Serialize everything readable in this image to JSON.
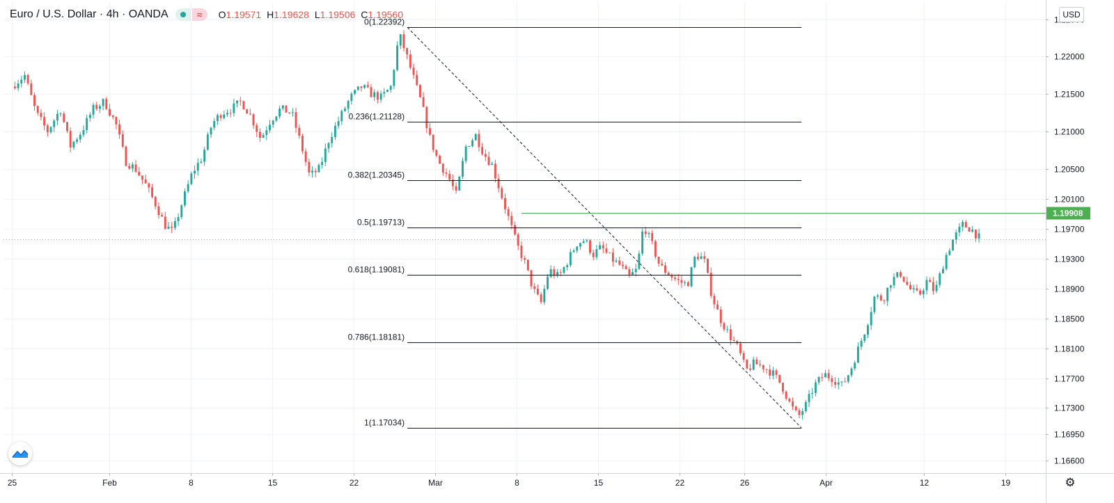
{
  "header": {
    "title": "Euro / U.S. Dollar · 4h · OANDA",
    "ohlc": [
      {
        "k": "O",
        "v": "1.19571"
      },
      {
        "k": "H",
        "v": "1.19628"
      },
      {
        "k": "L",
        "v": "1.19506"
      },
      {
        "k": "C",
        "v": "1.19560"
      }
    ]
  },
  "currency_button": "USD",
  "axis_top_partial_label": "0",
  "colors": {
    "up": "#26a69a",
    "down": "#ef5350",
    "resistance": "#4caf50",
    "fib": "#131722",
    "grid": "#f0f3fa"
  },
  "chart_data": {
    "type": "candlestick",
    "symbol": "Euro / U.S. Dollar",
    "timeframe": "4h",
    "ylim": [
      1.1643,
      1.2272
    ],
    "y_ticks": [
      "1.22500",
      "1.22000",
      "1.21500",
      "1.21000",
      "1.20500",
      "1.20100",
      "1.19700",
      "1.19300",
      "1.18900",
      "1.18500",
      "1.18100",
      "1.17700",
      "1.17300",
      "1.16950",
      "1.16600"
    ],
    "y_tick_values": [
      1.225,
      1.22,
      1.215,
      1.21,
      1.205,
      1.201,
      1.197,
      1.193,
      1.189,
      1.185,
      1.181,
      1.177,
      1.173,
      1.1695,
      1.166
    ],
    "x_ticks": [
      {
        "label": "25",
        "pos": 0
      },
      {
        "label": "Feb",
        "pos": 6
      },
      {
        "label": "8",
        "pos": 11
      },
      {
        "label": "15",
        "pos": 16
      },
      {
        "label": "22",
        "pos": 21
      },
      {
        "label": "Mar",
        "pos": 26
      },
      {
        "label": "8",
        "pos": 31
      },
      {
        "label": "15",
        "pos": 36
      },
      {
        "label": "22",
        "pos": 41
      },
      {
        "label": "26",
        "pos": 45
      },
      {
        "label": "Apr",
        "pos": 50
      },
      {
        "label": "12",
        "pos": 56
      },
      {
        "label": "19",
        "pos": 61
      }
    ],
    "x_range": [
      -0.5,
      63.5
    ],
    "path": [
      [
        0,
        1.216
      ],
      [
        0.8,
        1.2175
      ],
      [
        1.5,
        1.2125
      ],
      [
        2.2,
        1.21
      ],
      [
        3,
        1.213
      ],
      [
        3.6,
        1.208
      ],
      [
        4.3,
        1.21
      ],
      [
        5,
        1.213
      ],
      [
        5.7,
        1.214
      ],
      [
        6.4,
        1.211
      ],
      [
        7,
        1.206
      ],
      [
        7.6,
        1.205
      ],
      [
        8.2,
        1.203
      ],
      [
        8.9,
        1.2
      ],
      [
        9.4,
        1.1975
      ],
      [
        9.9,
        1.1965
      ],
      [
        10.4,
        1.2
      ],
      [
        11.1,
        1.2045
      ],
      [
        11.7,
        1.2065
      ],
      [
        12.3,
        1.211
      ],
      [
        12.9,
        1.2125
      ],
      [
        13.5,
        1.213
      ],
      [
        14.1,
        1.214
      ],
      [
        14.7,
        1.212
      ],
      [
        15.3,
        1.209
      ],
      [
        15.9,
        1.2115
      ],
      [
        16.5,
        1.213
      ],
      [
        17.2,
        1.2125
      ],
      [
        17.8,
        1.208
      ],
      [
        18.3,
        1.204
      ],
      [
        18.9,
        1.205
      ],
      [
        19.5,
        1.209
      ],
      [
        20.2,
        1.212
      ],
      [
        20.8,
        1.2145
      ],
      [
        21.5,
        1.216
      ],
      [
        22.1,
        1.215
      ],
      [
        22.7,
        1.2145
      ],
      [
        23.3,
        1.216
      ],
      [
        23.8,
        1.223
      ],
      [
        24.2,
        1.2205
      ],
      [
        24.7,
        1.217
      ],
      [
        25.2,
        1.2135
      ],
      [
        25.7,
        1.209
      ],
      [
        26.2,
        1.206
      ],
      [
        26.8,
        1.204
      ],
      [
        27.3,
        1.2015
      ],
      [
        27.9,
        1.208
      ],
      [
        28.5,
        1.2095
      ],
      [
        29.0,
        1.207
      ],
      [
        29.5,
        1.2055
      ],
      [
        30.0,
        1.202
      ],
      [
        30.5,
        1.1985
      ],
      [
        31.0,
        1.195
      ],
      [
        31.5,
        1.1925
      ],
      [
        32.0,
        1.189
      ],
      [
        32.5,
        1.187
      ],
      [
        33.0,
        1.1915
      ],
      [
        33.6,
        1.1905
      ],
      [
        34.1,
        1.1925
      ],
      [
        34.7,
        1.195
      ],
      [
        35.2,
        1.1955
      ],
      [
        35.7,
        1.1935
      ],
      [
        36.2,
        1.1945
      ],
      [
        36.8,
        1.193
      ],
      [
        37.4,
        1.192
      ],
      [
        37.9,
        1.1905
      ],
      [
        38.4,
        1.1915
      ],
      [
        38.8,
        1.1975
      ],
      [
        39.3,
        1.195
      ],
      [
        39.8,
        1.192
      ],
      [
        40.3,
        1.191
      ],
      [
        40.9,
        1.19
      ],
      [
        41.5,
        1.1895
      ],
      [
        42.0,
        1.1935
      ],
      [
        42.5,
        1.193
      ],
      [
        43.0,
        1.188
      ],
      [
        43.5,
        1.185
      ],
      [
        44.0,
        1.183
      ],
      [
        44.6,
        1.181
      ],
      [
        45.1,
        1.178
      ],
      [
        45.6,
        1.179
      ],
      [
        46.2,
        1.1785
      ],
      [
        46.8,
        1.1775
      ],
      [
        47.3,
        1.176
      ],
      [
        47.8,
        1.1735
      ],
      [
        48.3,
        1.1718
      ],
      [
        48.8,
        1.1735
      ],
      [
        49.3,
        1.176
      ],
      [
        49.9,
        1.1775
      ],
      [
        50.4,
        1.177
      ],
      [
        51.0,
        1.176
      ],
      [
        51.5,
        1.178
      ],
      [
        52.0,
        1.181
      ],
      [
        52.5,
        1.184
      ],
      [
        53.0,
        1.188
      ],
      [
        53.5,
        1.1875
      ],
      [
        54.0,
        1.19
      ],
      [
        54.6,
        1.191
      ],
      [
        55.1,
        1.189
      ],
      [
        55.7,
        1.188
      ],
      [
        56.2,
        1.19
      ],
      [
        56.7,
        1.1885
      ],
      [
        57.3,
        1.193
      ],
      [
        57.8,
        1.1955
      ],
      [
        58.4,
        1.1975
      ],
      [
        58.9,
        1.197
      ],
      [
        59.4,
        1.1958
      ]
    ],
    "fib_levels": [
      {
        "label": "0(1.22392)",
        "value": 1.22392
      },
      {
        "label": "0.236(1.21128)",
        "value": 1.21128
      },
      {
        "label": "0.382(1.20345)",
        "value": 1.20345
      },
      {
        "label": "0.5(1.19713)",
        "value": 1.19713
      },
      {
        "label": "0.618(1.19081)",
        "value": 1.19081
      },
      {
        "label": "0.786(1.18181)",
        "value": 1.18181
      },
      {
        "label": "1(1.17034)",
        "value": 1.17034
      }
    ],
    "fib_x_range": [
      24.3,
      48.5
    ],
    "fib_trend": {
      "from": [
        24.3,
        1.22392
      ],
      "to": [
        48.5,
        1.17034
      ]
    },
    "resistance": {
      "value": 1.19908,
      "label": "1.19908",
      "x_start": 31.3
    },
    "last_price": 1.1956
  }
}
